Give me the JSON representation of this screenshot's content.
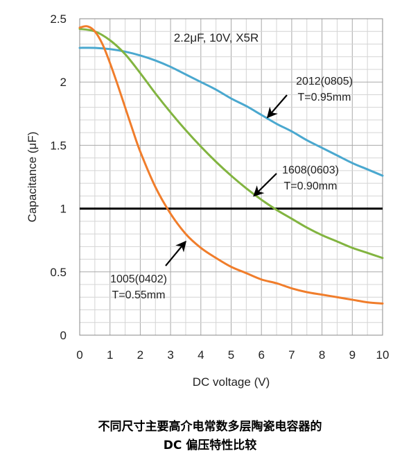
{
  "chart_data": {
    "type": "line",
    "title": "2.2μF, 10V, X5R",
    "xlabel": "DC voltage (V)",
    "ylabel": "Capacitance (μF)",
    "xlim": [
      0,
      10
    ],
    "ylim": [
      0,
      2.5
    ],
    "x_ticks": [
      "0",
      "1",
      "2",
      "3",
      "4",
      "5",
      "6",
      "7",
      "8",
      "9",
      "10"
    ],
    "y_ticks": [
      "0",
      "0.5",
      "1",
      "1.5",
      "2",
      "2.5"
    ],
    "grid": true,
    "reference_line": {
      "y": 1,
      "color": "#000000"
    },
    "series": [
      {
        "name": "2012(0805)",
        "note": "T=0.95mm",
        "color": "#4aa8cf",
        "x": [
          0,
          0.5,
          1,
          1.5,
          2,
          2.5,
          3,
          3.5,
          4,
          4.5,
          5,
          5.5,
          6,
          6.5,
          7,
          7.5,
          8,
          8.5,
          9,
          9.5,
          10
        ],
        "y": [
          2.27,
          2.27,
          2.26,
          2.24,
          2.21,
          2.17,
          2.12,
          2.06,
          2.0,
          1.94,
          1.87,
          1.81,
          1.74,
          1.67,
          1.61,
          1.54,
          1.48,
          1.42,
          1.36,
          1.31,
          1.26
        ]
      },
      {
        "name": "1608(0603)",
        "note": "T=0.90mm",
        "color": "#82b440",
        "x": [
          0,
          0.5,
          1,
          1.5,
          2,
          2.5,
          3,
          3.5,
          4,
          4.5,
          5,
          5.5,
          6,
          6.5,
          7,
          7.5,
          8,
          8.5,
          9,
          9.5,
          10
        ],
        "y": [
          2.42,
          2.4,
          2.33,
          2.22,
          2.07,
          1.91,
          1.76,
          1.62,
          1.49,
          1.37,
          1.26,
          1.16,
          1.07,
          0.99,
          0.92,
          0.85,
          0.79,
          0.74,
          0.69,
          0.65,
          0.61
        ]
      },
      {
        "name": "1005(0402)",
        "note": "T=0.55mm",
        "color": "#f07d2b",
        "x": [
          0,
          0.25,
          0.5,
          0.75,
          1,
          1.25,
          1.5,
          1.75,
          2,
          2.5,
          3,
          3.5,
          4,
          4.5,
          5,
          5.5,
          6,
          6.5,
          7,
          7.5,
          8,
          8.5,
          9,
          9.5,
          10
        ],
        "y": [
          2.43,
          2.44,
          2.4,
          2.3,
          2.15,
          1.98,
          1.8,
          1.62,
          1.45,
          1.17,
          0.96,
          0.8,
          0.69,
          0.61,
          0.54,
          0.49,
          0.44,
          0.41,
          0.37,
          0.34,
          0.32,
          0.3,
          0.28,
          0.26,
          0.25
        ]
      }
    ],
    "annotations": [
      {
        "label": "2012(0805)",
        "note": "T=0.95mm",
        "arrow_to": [
          6.2,
          1.72
        ]
      },
      {
        "label": "1608(0603)",
        "note": "T=0.90mm",
        "arrow_to": [
          5.75,
          1.1
        ]
      },
      {
        "label": "1005(0402)",
        "note": "T=0.55mm",
        "arrow_to": [
          3.5,
          0.74
        ]
      }
    ]
  },
  "caption": {
    "line1": "不同尺寸主要高介电常数多层陶瓷电容器的",
    "line2": "DC 偏压特性比较"
  }
}
